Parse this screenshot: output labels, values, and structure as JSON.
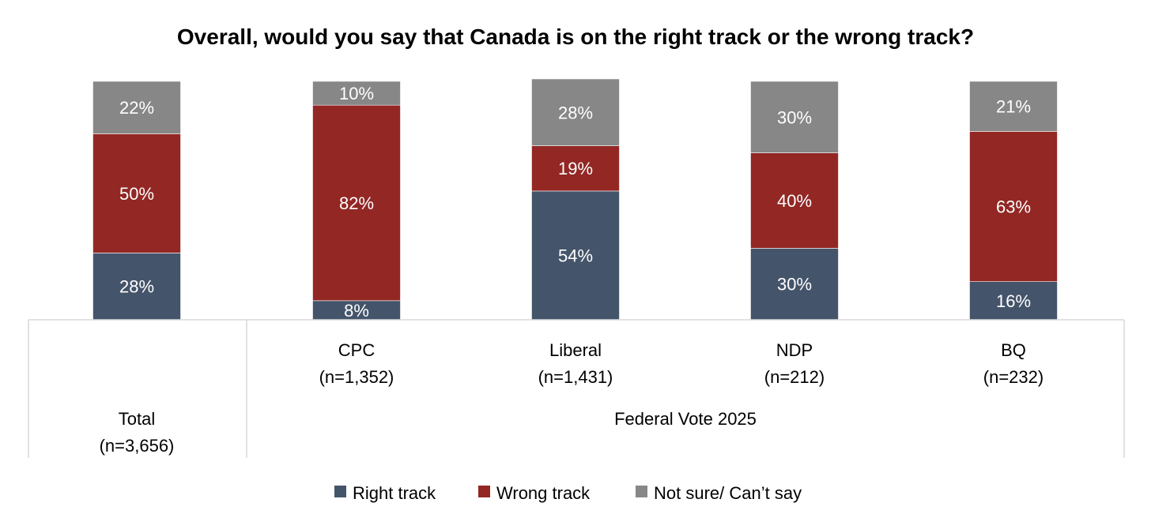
{
  "chart_data": {
    "type": "bar",
    "stacked": true,
    "orientation": "vertical",
    "title": "Overall, would you say that Canada is on the right track or the wrong track?",
    "categories": [
      {
        "name": "Total",
        "n": "(n=3,656)"
      },
      {
        "name": "CPC",
        "n": "(n=1,352)"
      },
      {
        "name": "Liberal",
        "n": "(n=1,431)"
      },
      {
        "name": "NDP",
        "n": "(n=212)"
      },
      {
        "name": "BQ",
        "n": "(n=232)"
      }
    ],
    "group_label": "Federal Vote 2025",
    "series": [
      {
        "name": "Right track",
        "color": "#44546a",
        "values": [
          28,
          8,
          54,
          30,
          16
        ]
      },
      {
        "name": "Wrong track",
        "color": "#922724",
        "values": [
          50,
          82,
          19,
          40,
          63
        ]
      },
      {
        "name": "Not sure/ Can’t say",
        "color": "#878787",
        "values": [
          22,
          10,
          28,
          30,
          21
        ]
      }
    ],
    "value_suffix": "%",
    "legend_position": "bottom",
    "ylim": [
      0,
      100
    ]
  }
}
